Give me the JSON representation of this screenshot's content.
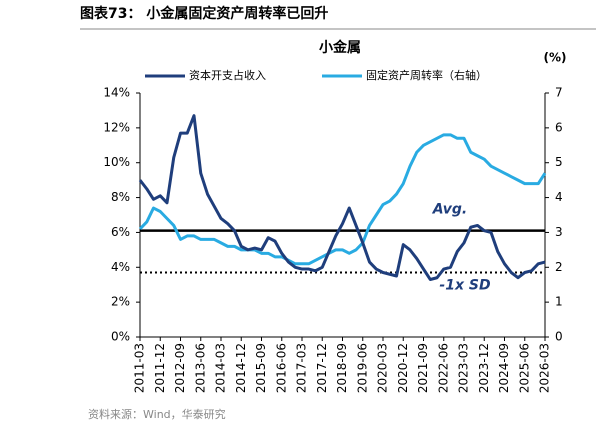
{
  "header": "图表73：  小金属固定资产周转率已回升",
  "source": "资料来源：Wind，华泰研究",
  "chart_data": {
    "type": "line",
    "title": "小金属",
    "y2_unit": "(%)",
    "categories": [
      "2011-03",
      null,
      null,
      "2011-12",
      null,
      null,
      "2012-09",
      null,
      null,
      "2013-06",
      null,
      null,
      "2014-03",
      null,
      null,
      "2014-12",
      null,
      null,
      "2015-09",
      null,
      null,
      "2016-06",
      null,
      null,
      "2017-03",
      null,
      null,
      "2017-12",
      null,
      null,
      "2018-09",
      null,
      null,
      "2019-06",
      null,
      null,
      "2020-03",
      null,
      null,
      "2020-12",
      null,
      null,
      "2021-09",
      null,
      null,
      "2022-06",
      null,
      null,
      "2023-03",
      null,
      null,
      "2023-12",
      null,
      null,
      "2024-09",
      null,
      null,
      "2025-06",
      null,
      null,
      "2026-03"
    ],
    "series": [
      {
        "name": "资本开支占收入",
        "color": "#1f3e7c",
        "axis": "y",
        "values": [
          9.0,
          8.5,
          7.9,
          8.1,
          7.7,
          10.3,
          11.7,
          11.7,
          12.7,
          9.4,
          8.2,
          7.5,
          6.8,
          6.5,
          6.1,
          5.2,
          5.0,
          5.1,
          5.0,
          5.7,
          5.5,
          4.8,
          4.3,
          4.0,
          3.9,
          3.9,
          3.8,
          4.0,
          4.9,
          5.8,
          6.5,
          7.4,
          6.4,
          5.4,
          4.3,
          3.9,
          3.7,
          3.6,
          3.5,
          5.3,
          5.0,
          4.5,
          3.9,
          3.3,
          3.4,
          3.9,
          4.0,
          4.9,
          5.4,
          6.3,
          6.4,
          6.1,
          6.0,
          4.9,
          4.2,
          3.7,
          3.4,
          3.7,
          3.8,
          4.2,
          4.3
        ]
      },
      {
        "name": "固定资产周转率（右轴）",
        "color": "#29abe2",
        "axis": "y2",
        "values": [
          3.1,
          3.3,
          3.7,
          3.6,
          3.4,
          3.2,
          2.8,
          2.9,
          2.9,
          2.8,
          2.8,
          2.8,
          2.7,
          2.6,
          2.6,
          2.5,
          2.5,
          2.5,
          2.4,
          2.4,
          2.3,
          2.3,
          2.2,
          2.1,
          2.1,
          2.1,
          2.2,
          2.3,
          2.4,
          2.5,
          2.5,
          2.4,
          2.5,
          2.7,
          3.2,
          3.5,
          3.8,
          3.9,
          4.1,
          4.4,
          4.9,
          5.3,
          5.5,
          5.6,
          5.7,
          5.8,
          5.8,
          5.7,
          5.7,
          5.3,
          5.2,
          5.1,
          4.9,
          4.8,
          4.7,
          4.6,
          4.5,
          4.4,
          4.4,
          4.4,
          4.7
        ]
      }
    ],
    "reference_lines": [
      {
        "label": "Avg.",
        "value": 6.1,
        "style": "solid",
        "color": "#000000"
      },
      {
        "label": "-1x SD",
        "value": 3.7,
        "style": "dotted",
        "color": "#000000"
      }
    ],
    "ylim": [
      0,
      14
    ],
    "yticks": [
      {
        "value": 0,
        "label": "0%"
      },
      {
        "value": 2,
        "label": "2%"
      },
      {
        "value": 4,
        "label": "4%"
      },
      {
        "value": 6,
        "label": "6%"
      },
      {
        "value": 8,
        "label": "8%"
      },
      {
        "value": 10,
        "label": "10%"
      },
      {
        "value": 12,
        "label": "12%"
      },
      {
        "value": 14,
        "label": "14%"
      }
    ],
    "y2lim": [
      0,
      7
    ],
    "y2ticks": [
      0,
      1,
      2,
      3,
      4,
      5,
      6,
      7
    ]
  }
}
